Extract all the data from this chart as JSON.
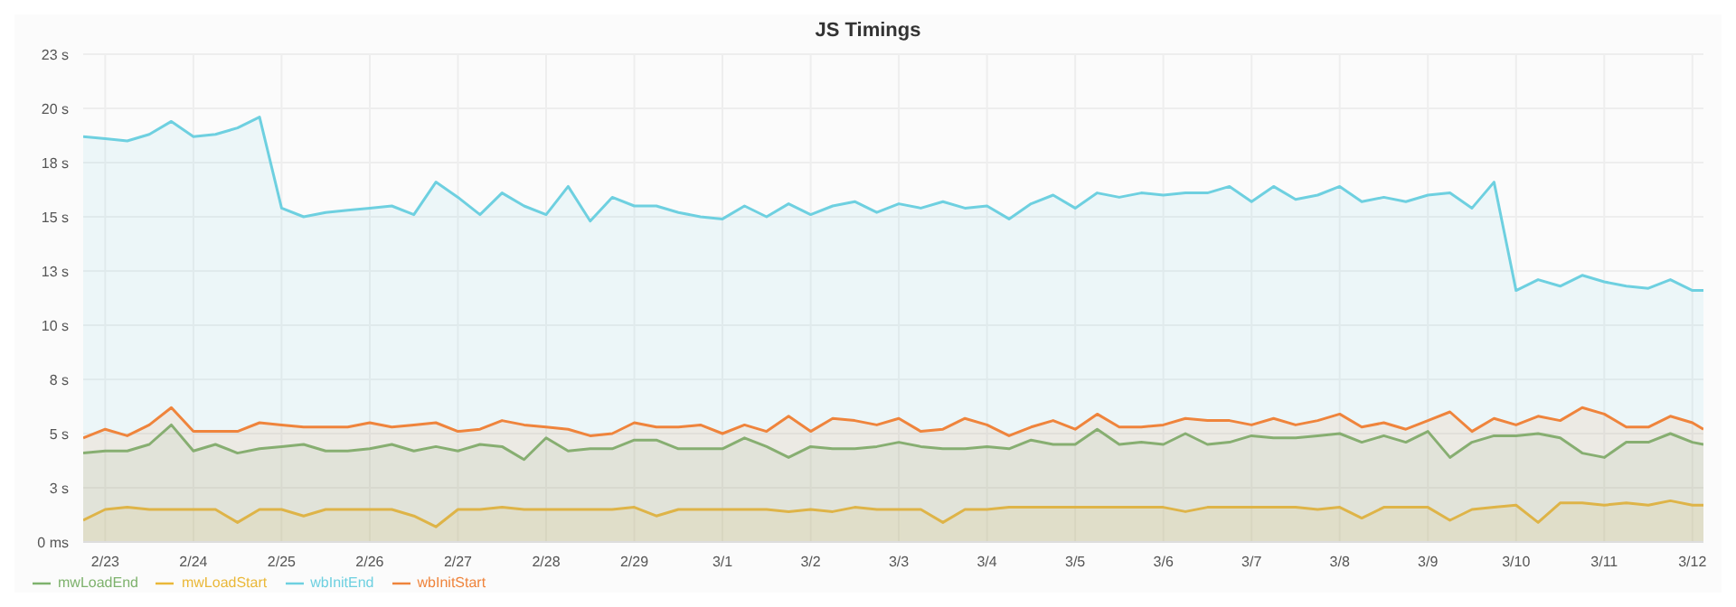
{
  "chart_data": {
    "type": "area",
    "title": "JS Timings",
    "x": [
      "--02-22T18:00",
      "--02-23T00:00",
      "--02-23T06:00",
      "--02-23T12:00",
      "--02-23T18:00",
      "--02-24T00:00",
      "--02-24T06:00",
      "--02-24T12:00",
      "--02-24T18:00",
      "--02-25T00:00",
      "--02-25T06:00",
      "--02-25T12:00",
      "--02-25T18:00",
      "--02-26T00:00",
      "--02-26T06:00",
      "--02-26T12:00",
      "--02-26T18:00",
      "--02-27T00:00",
      "--02-27T06:00",
      "--02-27T12:00",
      "--02-27T18:00",
      "--02-28T00:00",
      "--02-28T06:00",
      "--02-28T12:00",
      "--02-28T18:00",
      "--02-29T00:00",
      "--02-29T06:00",
      "--02-29T12:00",
      "--02-29T18:00",
      "--03-01T00:00",
      "--03-01T06:00",
      "--03-01T12:00",
      "--03-01T18:00",
      "--03-02T00:00",
      "--03-02T06:00",
      "--03-02T12:00",
      "--03-02T18:00",
      "--03-03T00:00",
      "--03-03T06:00",
      "--03-03T12:00",
      "--03-03T18:00",
      "--03-04T00:00",
      "--03-04T06:00",
      "--03-04T12:00",
      "--03-04T18:00",
      "--03-05T00:00",
      "--03-05T06:00",
      "--03-05T12:00",
      "--03-05T18:00",
      "--03-06T00:00",
      "--03-06T06:00",
      "--03-06T12:00",
      "--03-06T18:00",
      "--03-07T00:00",
      "--03-07T06:00",
      "--03-07T12:00",
      "--03-07T18:00",
      "--03-08T00:00",
      "--03-08T06:00",
      "--03-08T12:00",
      "--03-08T18:00",
      "--03-09T00:00",
      "--03-09T06:00",
      "--03-09T12:00",
      "--03-09T18:00",
      "--03-10T00:00",
      "--03-10T06:00",
      "--03-10T12:00",
      "--03-10T18:00",
      "--03-11T00:00",
      "--03-11T06:00",
      "--03-11T12:00",
      "--03-11T18:00",
      "--03-12T00:00",
      "--03-12T03:00"
    ],
    "series": [
      {
        "name": "mwLoadEnd",
        "color": "#7eb26d",
        "values": [
          4.1,
          4.2,
          4.2,
          4.5,
          5.4,
          4.2,
          4.5,
          4.1,
          4.3,
          4.4,
          4.5,
          4.2,
          4.2,
          4.3,
          4.5,
          4.2,
          4.4,
          4.2,
          4.5,
          4.4,
          3.8,
          4.8,
          4.2,
          4.3,
          4.3,
          4.7,
          4.7,
          4.3,
          4.3,
          4.3,
          4.8,
          4.4,
          3.9,
          4.4,
          4.3,
          4.3,
          4.4,
          4.6,
          4.4,
          4.3,
          4.3,
          4.4,
          4.3,
          4.7,
          4.5,
          4.5,
          5.2,
          4.5,
          4.6,
          4.5,
          5.0,
          4.5,
          4.6,
          4.9,
          4.8,
          4.8,
          4.9,
          5.0,
          4.6,
          4.9,
          4.6,
          5.1,
          3.9,
          4.6,
          4.9,
          4.9,
          5.0,
          4.8,
          4.1,
          3.9,
          4.6,
          4.6,
          5.0,
          4.6,
          4.5
        ]
      },
      {
        "name": "mwLoadStart",
        "color": "#eab839",
        "values": [
          1.0,
          1.5,
          1.6,
          1.5,
          1.5,
          1.5,
          1.5,
          0.9,
          1.5,
          1.5,
          1.2,
          1.5,
          1.5,
          1.5,
          1.5,
          1.2,
          0.7,
          1.5,
          1.5,
          1.6,
          1.5,
          1.5,
          1.5,
          1.5,
          1.5,
          1.6,
          1.2,
          1.5,
          1.5,
          1.5,
          1.5,
          1.5,
          1.4,
          1.5,
          1.4,
          1.6,
          1.5,
          1.5,
          1.5,
          0.9,
          1.5,
          1.5,
          1.6,
          1.6,
          1.6,
          1.6,
          1.6,
          1.6,
          1.6,
          1.6,
          1.4,
          1.6,
          1.6,
          1.6,
          1.6,
          1.6,
          1.5,
          1.6,
          1.1,
          1.6,
          1.6,
          1.6,
          1.0,
          1.5,
          1.6,
          1.7,
          0.9,
          1.8,
          1.8,
          1.7,
          1.8,
          1.7,
          1.9,
          1.7,
          1.7
        ]
      },
      {
        "name": "wbInitEnd",
        "color": "#6ed0e0",
        "values": [
          18.7,
          18.6,
          18.5,
          18.8,
          19.4,
          18.7,
          18.8,
          19.1,
          19.6,
          15.4,
          15.0,
          15.2,
          15.3,
          15.4,
          15.5,
          15.1,
          16.6,
          15.9,
          15.1,
          16.1,
          15.5,
          15.1,
          16.4,
          14.8,
          15.9,
          15.5,
          15.5,
          15.2,
          15.0,
          14.9,
          15.5,
          15.0,
          15.6,
          15.1,
          15.5,
          15.7,
          15.2,
          15.6,
          15.4,
          15.7,
          15.4,
          15.5,
          14.9,
          15.6,
          16.0,
          15.4,
          16.1,
          15.9,
          16.1,
          16.0,
          16.1,
          16.1,
          16.4,
          15.7,
          16.4,
          15.8,
          16.0,
          16.4,
          15.7,
          15.9,
          15.7,
          16.0,
          16.1,
          15.4,
          16.6,
          11.6,
          12.1,
          11.8,
          12.3,
          12.0,
          11.8,
          11.7,
          12.1,
          11.6,
          11.6
        ]
      },
      {
        "name": "wbInitStart",
        "color": "#ef843c",
        "values": [
          4.8,
          5.2,
          4.9,
          5.4,
          6.2,
          5.1,
          5.1,
          5.1,
          5.5,
          5.4,
          5.3,
          5.3,
          5.3,
          5.5,
          5.3,
          5.4,
          5.5,
          5.1,
          5.2,
          5.6,
          5.4,
          5.3,
          5.2,
          4.9,
          5.0,
          5.5,
          5.3,
          5.3,
          5.4,
          5.0,
          5.4,
          5.1,
          5.8,
          5.1,
          5.7,
          5.6,
          5.4,
          5.7,
          5.1,
          5.2,
          5.7,
          5.4,
          4.9,
          5.3,
          5.6,
          5.2,
          5.9,
          5.3,
          5.3,
          5.4,
          5.7,
          5.6,
          5.6,
          5.4,
          5.7,
          5.4,
          5.6,
          5.9,
          5.3,
          5.5,
          5.2,
          5.6,
          6.0,
          5.1,
          5.7,
          5.4,
          5.8,
          5.6,
          6.2,
          5.9,
          5.3,
          5.3,
          5.8,
          5.5,
          5.2
        ]
      }
    ],
    "xlim": [
      "--02-22T18:00",
      "--03-12T03:00"
    ],
    "xticks": [
      {
        "value": "--02-23",
        "label": "2/23"
      },
      {
        "value": "--02-24",
        "label": "2/24"
      },
      {
        "value": "--02-25",
        "label": "2/25"
      },
      {
        "value": "--02-26",
        "label": "2/26"
      },
      {
        "value": "--02-27",
        "label": "2/27"
      },
      {
        "value": "--02-28",
        "label": "2/28"
      },
      {
        "value": "--02-29",
        "label": "2/29"
      },
      {
        "value": "--03-01",
        "label": "3/1"
      },
      {
        "value": "--03-02",
        "label": "3/2"
      },
      {
        "value": "--03-03",
        "label": "3/3"
      },
      {
        "value": "--03-04",
        "label": "3/4"
      },
      {
        "value": "--03-05",
        "label": "3/5"
      },
      {
        "value": "--03-06",
        "label": "3/6"
      },
      {
        "value": "--03-07",
        "label": "3/7"
      },
      {
        "value": "--03-08",
        "label": "3/8"
      },
      {
        "value": "--03-09",
        "label": "3/9"
      },
      {
        "value": "--03-10",
        "label": "3/10"
      },
      {
        "value": "--03-11",
        "label": "3/11"
      },
      {
        "value": "--03-12",
        "label": "3/12"
      }
    ],
    "ylim": [
      0,
      22.5
    ],
    "yticks": [
      {
        "value": 0,
        "label": "0 ms"
      },
      {
        "value": 2.5,
        "label": "3 s"
      },
      {
        "value": 5,
        "label": "5 s"
      },
      {
        "value": 7.5,
        "label": "8 s"
      },
      {
        "value": 10,
        "label": "10 s"
      },
      {
        "value": 12.5,
        "label": "13 s"
      },
      {
        "value": 15,
        "label": "15 s"
      },
      {
        "value": 17.5,
        "label": "18 s"
      },
      {
        "value": 20,
        "label": "20 s"
      },
      {
        "value": 22.5,
        "label": "23 s"
      }
    ],
    "grid": true,
    "legend": "bottom",
    "marker": "none",
    "line_style": "solid"
  }
}
